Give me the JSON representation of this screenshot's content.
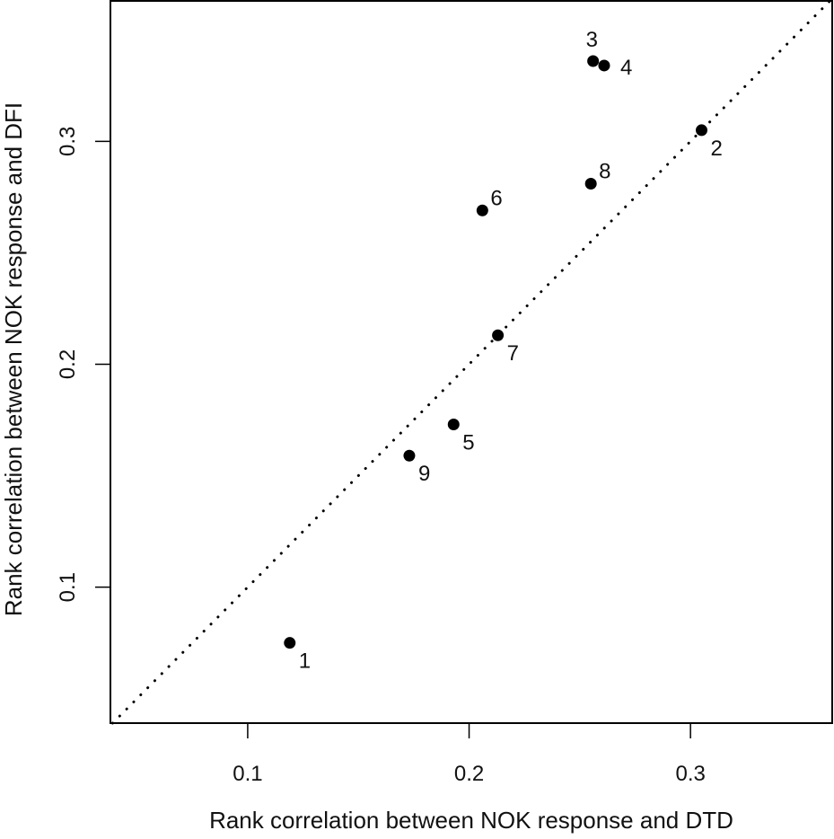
{
  "chart_data": {
    "type": "scatter",
    "title": "",
    "xlabel": "Rank correlation between NOK response and DTD",
    "ylabel": "Rank correlation between NOK response and DFI",
    "xlim": [
      0.038,
      0.364
    ],
    "ylim": [
      0.039,
      0.363
    ],
    "xticks": [
      0.1,
      0.2,
      0.3
    ],
    "yticks": [
      0.1,
      0.2,
      0.3
    ],
    "xtick_labels": [
      "0.1",
      "0.2",
      "0.3"
    ],
    "ytick_labels": [
      "0.1",
      "0.2",
      "0.3"
    ],
    "grid": false,
    "legend": null,
    "reference_line": {
      "type": "identity",
      "style": "dotted",
      "description": "y = x"
    },
    "points": [
      {
        "label": "1",
        "x": 0.119,
        "y": 0.075,
        "label_pos": "bottom-right"
      },
      {
        "label": "2",
        "x": 0.305,
        "y": 0.305,
        "label_pos": "bottom-right"
      },
      {
        "label": "3",
        "x": 0.256,
        "y": 0.336,
        "label_pos": "top"
      },
      {
        "label": "4",
        "x": 0.261,
        "y": 0.334,
        "label_pos": "right"
      },
      {
        "label": "5",
        "x": 0.193,
        "y": 0.173,
        "label_pos": "bottom-right"
      },
      {
        "label": "6",
        "x": 0.206,
        "y": 0.269,
        "label_pos": "top-right"
      },
      {
        "label": "7",
        "x": 0.213,
        "y": 0.213,
        "label_pos": "bottom-right"
      },
      {
        "label": "8",
        "x": 0.255,
        "y": 0.281,
        "label_pos": "top-right"
      },
      {
        "label": "9",
        "x": 0.173,
        "y": 0.159,
        "label_pos": "bottom-right"
      }
    ],
    "colors": {
      "points": "#000000",
      "axis": "#000000",
      "reference_line": "#000000"
    }
  }
}
